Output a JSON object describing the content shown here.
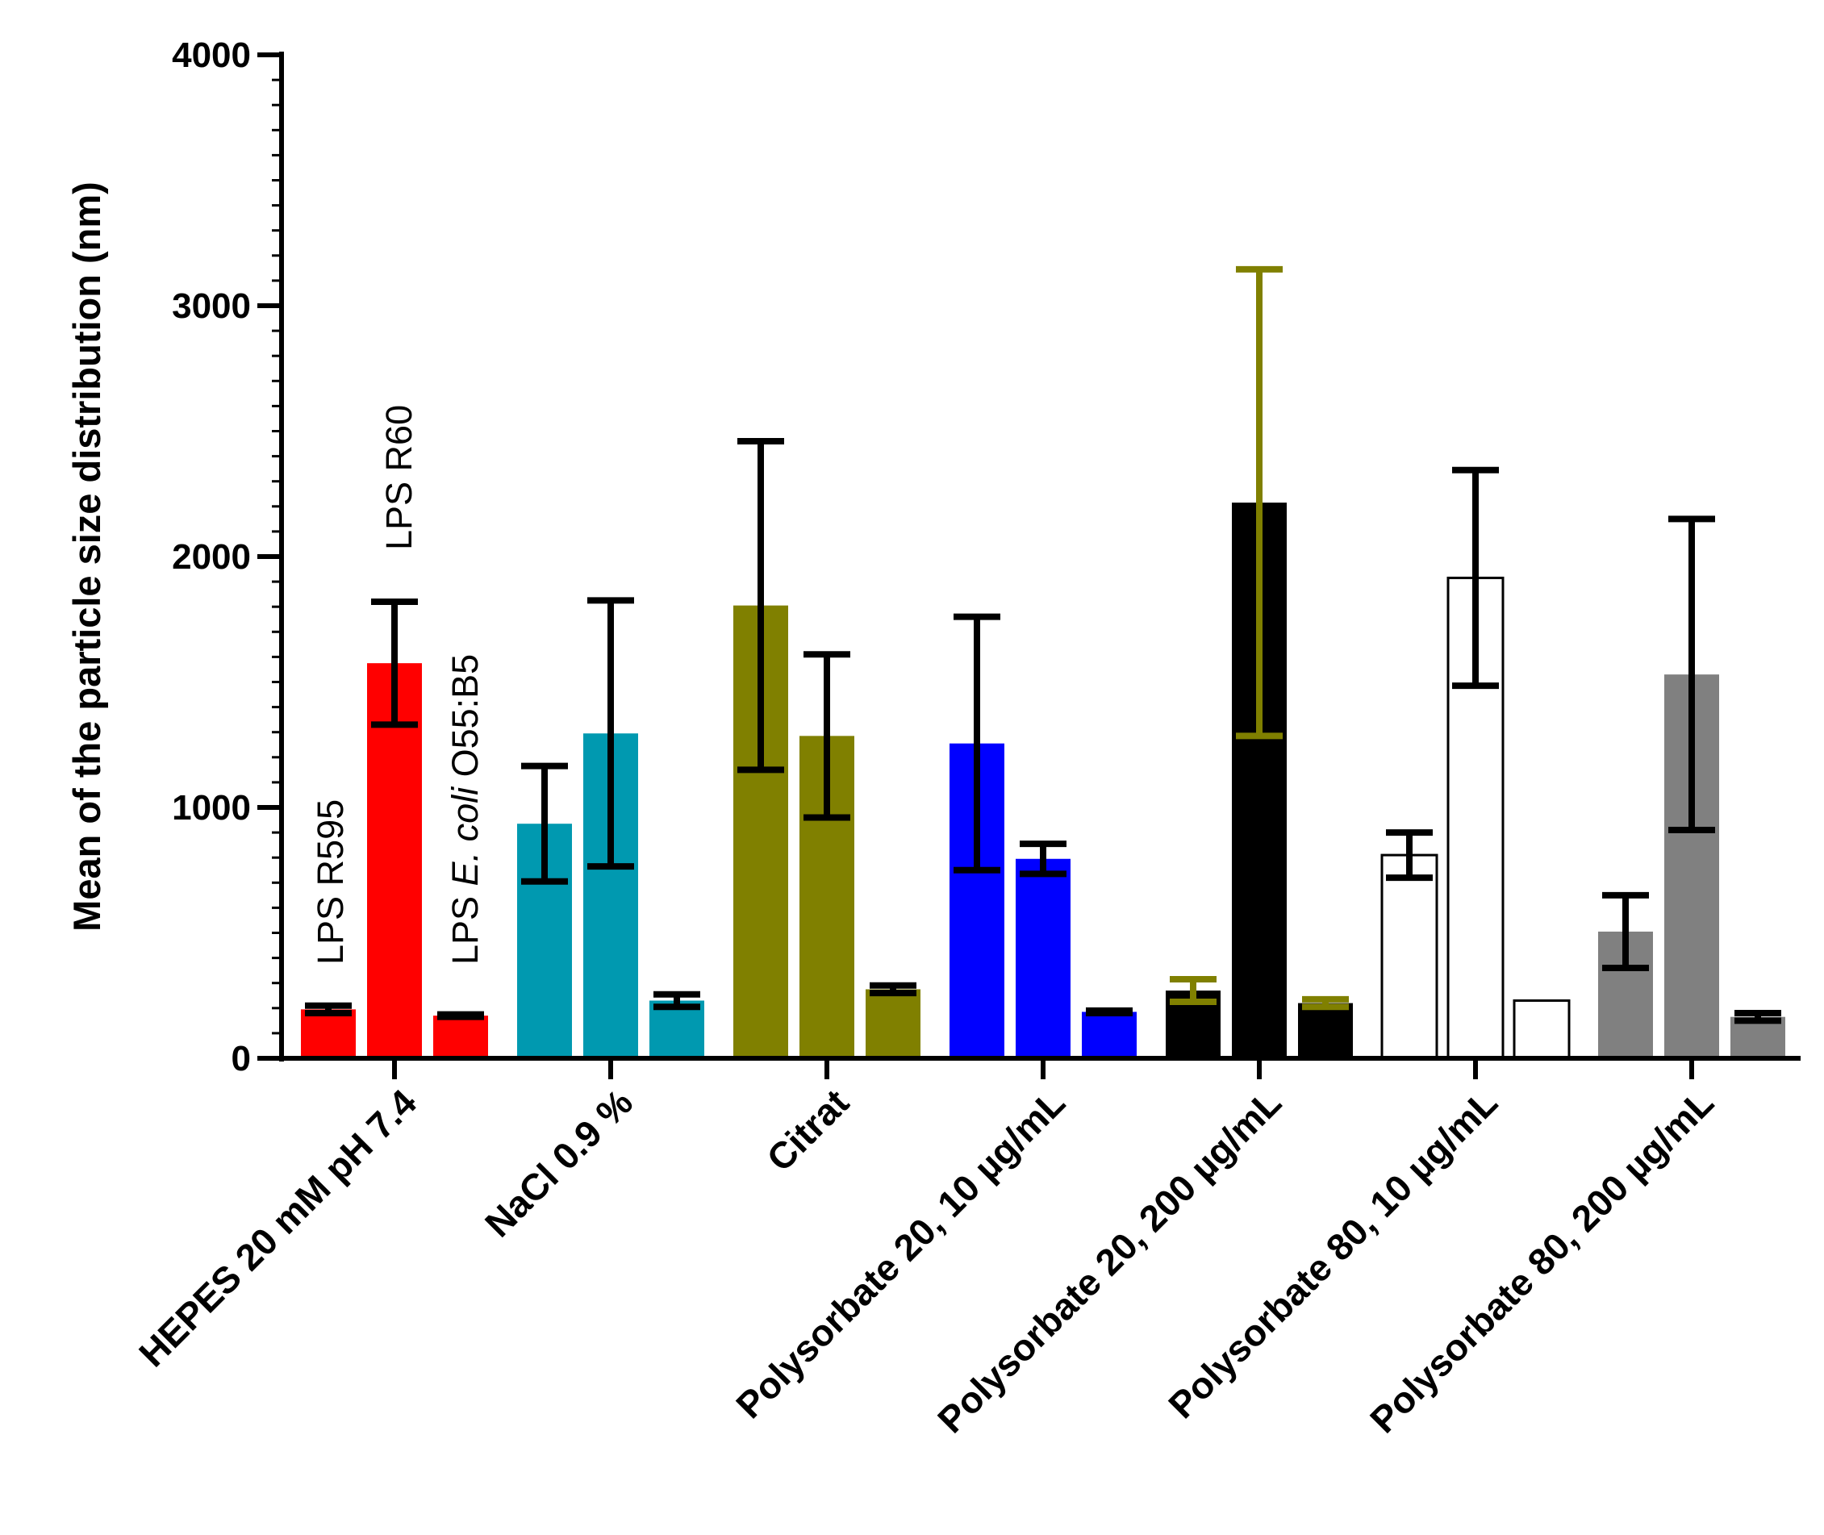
{
  "chart_data": {
    "type": "bar",
    "title": "",
    "xlabel": "",
    "ylabel": "Mean of the particle size distribution (nm)",
    "ylim": [
      0,
      4000
    ],
    "yticks": [
      0,
      1000,
      2000,
      3000,
      4000
    ],
    "ytick_labels": [
      "0",
      "1000",
      "2000",
      "3000",
      "4000"
    ],
    "minor_tick_step": 100,
    "categories": [
      "HEPES 20 mM pH 7.4",
      "NaCl 0.9 %",
      "Citrat",
      "Polysorbate 20, 10 µg/mL",
      "Polysorbate 20, 200 µg/mL",
      "Polysorbate 80, 10 µg/mL",
      "Polysorbate 80, 200 µg/mL"
    ],
    "category_colors": [
      "#ff0000",
      "#0099b0",
      "#808000",
      "#0000ff",
      "#000000",
      "#ffffff",
      "#808080"
    ],
    "category_errbar_colors": [
      "#000000",
      "#000000",
      "#000000",
      "#000000",
      "#808000",
      "#000000",
      "#000000"
    ],
    "series": [
      {
        "name": "LPS R595",
        "label_parts": [
          "LPS R595"
        ],
        "values": [
          195,
          935,
          1805,
          1255,
          270,
          810,
          505
        ],
        "errors": [
          15,
          230,
          655,
          505,
          45,
          90,
          145
        ]
      },
      {
        "name": "LPS R60",
        "label_parts": [
          "LPS R60"
        ],
        "values": [
          1575,
          1295,
          1285,
          795,
          2215,
          1915,
          1530
        ],
        "errors": [
          245,
          530,
          325,
          60,
          930,
          430,
          620
        ]
      },
      {
        "name": "LPS E. coli O55:B5",
        "label_parts": [
          "LPS ",
          "E. coli",
          " O55:B5"
        ],
        "values": [
          170,
          230,
          275,
          185,
          220,
          230,
          165
        ],
        "errors": [
          5,
          25,
          15,
          5,
          15,
          0,
          15
        ]
      }
    ]
  }
}
